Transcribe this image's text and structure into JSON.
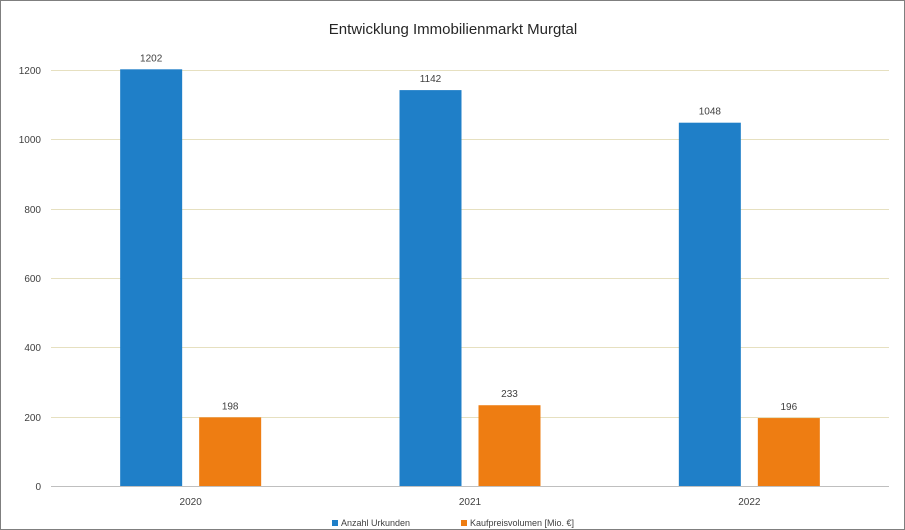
{
  "chart_data": {
    "type": "bar",
    "title": "Entwicklung Immobilienmarkt Murgtal",
    "categories": [
      "2020",
      "2021",
      "2022"
    ],
    "series": [
      {
        "name": "Anzahl Urkunden",
        "values": [
          1202,
          1142,
          1048
        ],
        "color": "#1f7fc8"
      },
      {
        "name": "Kaufpreisvolumen [Mio. €]",
        "values": [
          198,
          233,
          196
        ],
        "color": "#ee7d12"
      }
    ],
    "ylim": [
      0,
      1200
    ],
    "yticks": [
      0,
      200,
      400,
      600,
      800,
      1000,
      1200
    ],
    "grid": true,
    "legend_position": "bottom",
    "data_labels": true
  }
}
